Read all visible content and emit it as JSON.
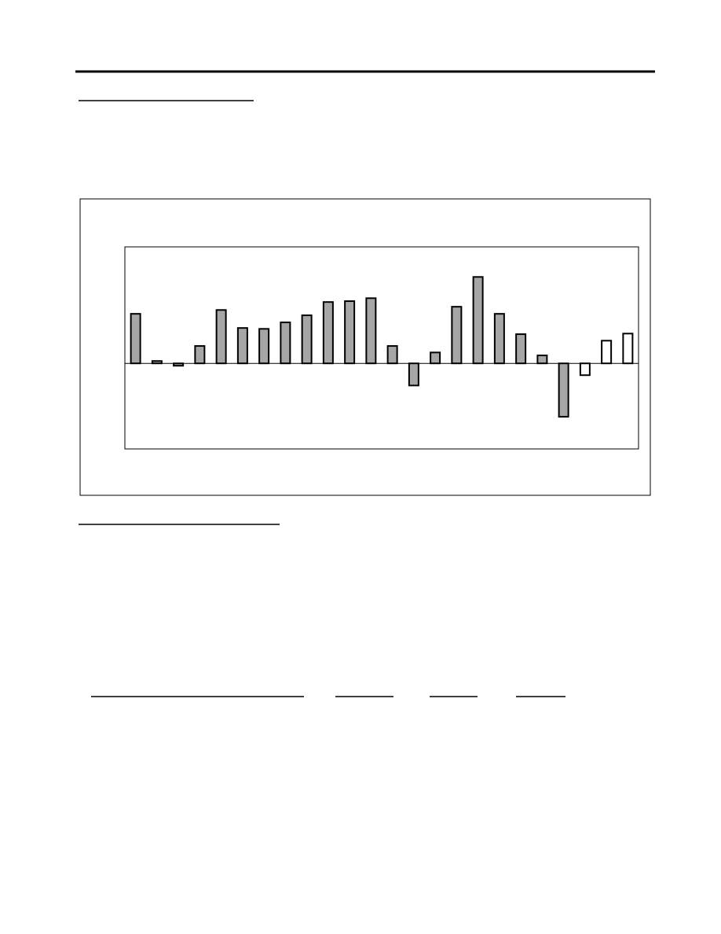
{
  "chart_data": {
    "type": "bar",
    "categories": [
      null,
      null,
      null,
      null,
      null,
      null,
      null,
      null,
      null,
      null,
      null,
      null,
      null,
      null,
      null,
      null,
      null,
      null,
      null,
      null,
      null,
      null,
      null,
      null
    ],
    "values": [
      1.68,
      0.08,
      -0.08,
      0.59,
      1.81,
      1.2,
      1.17,
      1.39,
      1.63,
      2.08,
      2.11,
      2.21,
      0.59,
      -0.75,
      0.37,
      1.92,
      2.93,
      1.68,
      0.99,
      0.27,
      -1.81,
      -0.4,
      0.77,
      1.01
    ],
    "colors": [
      "#a6a6a6",
      "#a6a6a6",
      "#a6a6a6",
      "#a6a6a6",
      "#a6a6a6",
      "#a6a6a6",
      "#a6a6a6",
      "#a6a6a6",
      "#a6a6a6",
      "#a6a6a6",
      "#a6a6a6",
      "#a6a6a6",
      "#a6a6a6",
      "#a6a6a6",
      "#a6a6a6",
      "#a6a6a6",
      "#a6a6a6",
      "#a6a6a6",
      "#a6a6a6",
      "#a6a6a6",
      "#a6a6a6",
      "#ffffff",
      "#ffffff",
      "#ffffff"
    ],
    "ylim": [
      -2.9,
      3.95
    ]
  }
}
